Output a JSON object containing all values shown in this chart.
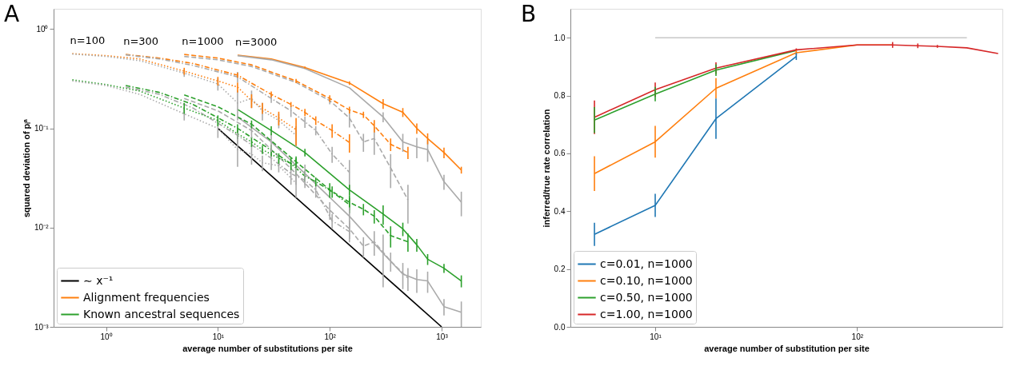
{
  "chart_data": [
    {
      "type": "line",
      "xlabel": "average number of substitutions per site",
      "ylabel": "squared deviation of pᵢᵃ",
      "log": "xy",
      "xlim": [
        0.34,
        2240
      ],
      "ylim": [
        0.001,
        1.6
      ],
      "xticks": [
        {
          "value": 1,
          "label": "10⁰"
        },
        {
          "value": 10,
          "label": "10¹"
        },
        {
          "value": 100,
          "label": "10²"
        },
        {
          "value": 1000,
          "label": "10³"
        }
      ],
      "yticks": [
        {
          "value": 0.001,
          "label": "10⁻³"
        },
        {
          "value": 0.01,
          "label": "10⁻²"
        },
        {
          "value": 0.1,
          "label": "10⁻¹"
        },
        {
          "value": 1,
          "label": "10⁰"
        }
      ],
      "legend": "bottom left",
      "annotations": [
        "A",
        {
          "text": "n=100",
          "x": 0.5,
          "y": 0.565
        },
        {
          "text": "n=300",
          "x": 1.5,
          "y": 0.555
        },
        {
          "text": "n=1000",
          "x": 5,
          "y": 0.555
        },
        {
          "text": "n=3000",
          "x": 15,
          "y": 0.545
        }
      ],
      "series": [
        {
          "name": "∼ x⁻¹",
          "color": "#000000",
          "line_style": "solid",
          "x": [
            10,
            1000
          ],
          "values": [
            0.1,
            0.001
          ]
        },
        {
          "name": "Alignment frequencies",
          "color": "#ff7f0e",
          "line_style": "solid",
          "x": [
            15,
            30,
            60,
            150,
            300,
            450,
            600,
            750,
            1050,
            1500
          ],
          "values": [
            0.545,
            0.5,
            0.41,
            0.286,
            0.177,
            0.145,
            0.1,
            0.079,
            0.057,
            0.038
          ],
          "errors": [
            null,
            null,
            0.01,
            0.012,
            0.02,
            0.015,
            0.012,
            0.01,
            0.007,
            0.003
          ]
        },
        {
          "name": "Known ancestral sequences",
          "color": "#2ca02c",
          "line_style": "solid",
          "x": [
            15,
            30,
            60,
            150,
            300,
            450,
            600,
            750,
            1050,
            1500
          ],
          "values": [
            0.155,
            0.095,
            0.057,
            0.024,
            0.0137,
            0.0097,
            0.0067,
            0.0048,
            0.0039,
            0.0029
          ],
          "errors": [
            null,
            0.01,
            0.005,
            0.003,
            0.003,
            0.0015,
            0.001,
            0.0006,
            0.0004,
            0.0004
          ]
        },
        {
          "color": "#aaaaaa",
          "line_style": "solid",
          "x": [
            15,
            30,
            60,
            150,
            300,
            450,
            600,
            750,
            1050,
            1500
          ],
          "values": [
            0.54,
            0.49,
            0.4,
            0.256,
            0.13,
            0.073,
            0.065,
            0.061,
            0.029,
            0.018
          ],
          "errors": [
            null,
            null,
            null,
            null,
            0.015,
            0.015,
            0.015,
            0.015,
            0.005,
            0.005
          ]
        },
        {
          "color": "#aaaaaa",
          "line_style": "solid",
          "x": [
            15,
            30,
            60,
            150,
            300,
            450,
            600,
            750,
            1050,
            1500
          ],
          "values": [
            0.13,
            0.073,
            0.035,
            0.013,
            0.0055,
            0.0034,
            0.003,
            0.0029,
            0.0016,
            0.0014
          ],
          "errors": [
            null,
            0.015,
            0.008,
            0.003,
            0.003,
            0.001,
            0.0008,
            0.0007,
            0.0003,
            0.0004
          ]
        },
        {
          "color": "#ff7f0e",
          "line_style": "dashed",
          "x": [
            5,
            10,
            20,
            50,
            100,
            150,
            200,
            250,
            350,
            500
          ],
          "values": [
            0.555,
            0.51,
            0.436,
            0.3,
            0.2,
            0.153,
            0.137,
            0.106,
            0.069,
            0.057
          ],
          "errors": [
            null,
            null,
            null,
            0.015,
            0.015,
            0.012,
            0.01,
            0.015,
            0.01,
            0.008
          ]
        },
        {
          "color": "#aaaaaa",
          "line_style": "dashed",
          "x": [
            5,
            10,
            20,
            50,
            100,
            150,
            200,
            250,
            350,
            500
          ],
          "values": [
            0.53,
            0.49,
            0.42,
            0.29,
            0.19,
            0.127,
            0.073,
            0.079,
            0.04,
            0.019
          ],
          "errors": [
            null,
            null,
            null,
            null,
            0.015,
            0.025,
            0.015,
            0.025,
            0.015,
            0.008
          ]
        },
        {
          "color": "#2ca02c",
          "line_style": "dashed",
          "x": [
            5,
            10,
            20,
            50,
            100,
            150,
            200,
            250,
            350,
            500
          ],
          "values": [
            0.217,
            0.165,
            0.11,
            0.046,
            0.024,
            0.018,
            0.0153,
            0.013,
            0.0083,
            0.0072
          ],
          "errors": [
            null,
            null,
            0.01,
            0.006,
            0.004,
            0.003,
            0.002,
            0.002,
            0.002,
            0.0015
          ]
        },
        {
          "color": "#aaaaaa",
          "line_style": "dashed",
          "x": [
            5,
            10,
            20,
            50,
            100,
            150,
            200,
            250,
            350,
            500
          ],
          "values": [
            0.2,
            0.15,
            0.095,
            0.035,
            0.015,
            0.0097,
            0.0065,
            0.0072,
            0.0046,
            0.0031
          ],
          "errors": [
            null,
            null,
            0.015,
            0.008,
            0.003,
            0.002,
            0.0015,
            0.002,
            0.001,
            0.0008
          ]
        },
        {
          "color": "#ff7f0e",
          "line_style": "dashdot",
          "x": [
            1.5,
            3,
            6,
            15,
            30,
            45,
            60,
            75,
            105,
            150
          ],
          "values": [
            0.555,
            0.51,
            0.45,
            0.343,
            0.22,
            0.174,
            0.145,
            0.12,
            0.095,
            0.072
          ],
          "errors": [
            null,
            null,
            null,
            0.02,
            0.015,
            0.01,
            0.012,
            0.012,
            0.015,
            0.015
          ]
        },
        {
          "color": "#aaaaaa",
          "line_style": "dashdot",
          "x": [
            1.5,
            3,
            6,
            15,
            30,
            45,
            60,
            75,
            105,
            150
          ],
          "values": [
            0.55,
            0.5,
            0.43,
            0.33,
            0.2,
            0.15,
            0.116,
            0.095,
            0.055,
            0.036
          ],
          "errors": [
            null,
            null,
            null,
            0.04,
            0.02,
            0.02,
            0.015,
            0.01,
            0.01,
            0.012
          ]
        },
        {
          "color": "#2ca02c",
          "line_style": "dashdot",
          "x": [
            1.5,
            3,
            6,
            15,
            30,
            45,
            60,
            75,
            105,
            150
          ],
          "values": [
            0.27,
            0.23,
            0.174,
            0.1,
            0.06,
            0.044,
            0.033,
            0.029,
            0.023,
            0.017
          ],
          "errors": [
            null,
            null,
            null,
            0.01,
            0.008,
            0.006,
            0.004,
            0.003,
            0.003,
            0.003
          ]
        },
        {
          "color": "#aaaaaa",
          "line_style": "dashdot",
          "x": [
            1.5,
            3,
            6,
            15,
            30,
            45,
            60,
            75,
            105,
            150
          ],
          "values": [
            0.26,
            0.22,
            0.16,
            0.085,
            0.05,
            0.035,
            0.03,
            0.024,
            0.0117,
            0.0091
          ],
          "errors": [
            null,
            null,
            null,
            0.015,
            0.012,
            0.008,
            0.005,
            0.004,
            0.002,
            0.002
          ]
        },
        {
          "color": "#ff7f0e",
          "line_style": "dotted",
          "x": [
            0.5,
            1,
            2,
            5,
            10,
            15,
            20,
            25,
            35,
            50
          ],
          "values": [
            0.565,
            0.54,
            0.5,
            0.377,
            0.3,
            0.26,
            0.19,
            0.16,
            0.127,
            0.097
          ],
          "errors": [
            null,
            null,
            null,
            0.03,
            0.03,
            0.03,
            0.03,
            0.02,
            0.02,
            0.03
          ]
        },
        {
          "color": "#aaaaaa",
          "line_style": "dotted",
          "x": [
            0.5,
            1,
            2,
            5,
            10,
            15,
            20,
            25,
            35,
            50
          ],
          "values": [
            0.56,
            0.53,
            0.48,
            0.36,
            0.28,
            0.18,
            0.2,
            0.15,
            0.12,
            0.085
          ],
          "errors": [
            null,
            null,
            null,
            0.03,
            0.04,
            0.06,
            0.04,
            0.03,
            0.02,
            0.02
          ]
        },
        {
          "color": "#2ca02c",
          "line_style": "dotted",
          "x": [
            0.5,
            1,
            2,
            5,
            10,
            15,
            20,
            25,
            35,
            50
          ],
          "values": [
            0.308,
            0.276,
            0.237,
            0.16,
            0.12,
            0.088,
            0.073,
            0.061,
            0.05,
            0.042
          ],
          "errors": [
            null,
            null,
            null,
            0.02,
            0.015,
            0.01,
            0.008,
            0.006,
            0.006,
            0.008
          ]
        },
        {
          "color": "#aaaaaa",
          "line_style": "dotted",
          "x": [
            0.5,
            1,
            2,
            5,
            10,
            15,
            20,
            25,
            35,
            50
          ],
          "values": [
            0.3,
            0.27,
            0.22,
            0.14,
            0.1,
            0.061,
            0.055,
            0.045,
            0.042,
            0.028
          ],
          "errors": [
            null,
            null,
            null,
            0.02,
            0.02,
            0.02,
            0.012,
            0.008,
            0.006,
            0.008
          ]
        }
      ]
    },
    {
      "type": "line",
      "xlabel": "average number of substitution per site",
      "ylabel": "inferred/true rate correlation",
      "log": "x",
      "xlim": [
        3.8,
        525
      ],
      "ylim": [
        0,
        1.1
      ],
      "xticks": [
        {
          "value": 10,
          "label": "10¹"
        },
        {
          "value": 100,
          "label": "10²"
        }
      ],
      "yticks": [
        {
          "value": 0,
          "label": "0.0"
        },
        0.2,
        0.4,
        0.6,
        0.8,
        {
          "value": 1,
          "label": "1.0"
        }
      ],
      "legend": "bottom left",
      "annotations": [
        "B"
      ],
      "series": [
        {
          "color": "#c8c8c8",
          "line_style": "solid",
          "x": [
            10,
            350
          ],
          "values": [
            1,
            1
          ]
        },
        {
          "name": "c=0.01, n=1000",
          "color": "#1f77b4",
          "line_style": "solid",
          "x": [
            5,
            10,
            20,
            50
          ],
          "values": [
            0.32,
            0.42,
            0.72,
            0.935
          ],
          "errors": [
            0.04,
            0.04,
            0.07,
            0.012
          ]
        },
        {
          "name": "c=0.10, n=1000",
          "color": "#ff7f0e",
          "line_style": "solid",
          "x": [
            5,
            10,
            20,
            50,
            100,
            150
          ],
          "values": [
            0.53,
            0.64,
            0.825,
            0.948,
            0.975,
            0.975
          ],
          "errors": [
            0.06,
            0.055,
            0.035,
            0.008,
            null,
            null
          ]
        },
        {
          "name": "c=0.50, n=1000",
          "color": "#2ca02c",
          "line_style": "solid",
          "x": [
            5,
            10,
            20,
            50
          ],
          "values": [
            0.715,
            0.805,
            0.888,
            0.956
          ],
          "errors": [
            0.045,
            0.025,
            0.02,
            null
          ]
        },
        {
          "name": "c=1.00, n=1000",
          "color": "#d62728",
          "line_style": "solid",
          "x": [
            5,
            10,
            20,
            50,
            100,
            150,
            200,
            250,
            350,
            500
          ],
          "values": [
            0.725,
            0.82,
            0.895,
            0.958,
            0.975,
            0.975,
            0.972,
            0.97,
            0.965,
            0.945
          ],
          "errors": [
            0.058,
            0.025,
            0.02,
            0.005,
            null,
            0.01,
            0.008,
            0.005,
            null,
            null
          ]
        }
      ]
    }
  ]
}
